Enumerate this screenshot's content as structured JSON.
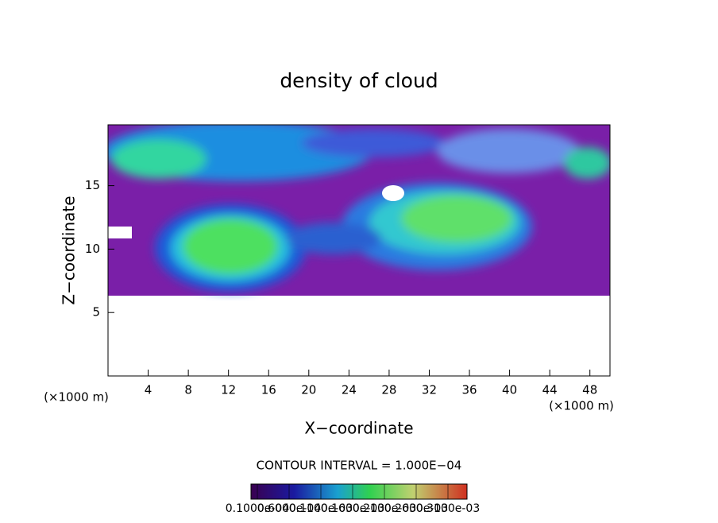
{
  "chart_data": {
    "type": "heatmap",
    "title": "density of cloud",
    "xlabel": "X−coordinate",
    "ylabel": "Z−coordinate",
    "x_unit_label": "(×1000 m)",
    "y_unit_label": "(×1000 m)",
    "xlim": [
      0,
      50
    ],
    "ylim": [
      0,
      19.8
    ],
    "xticks": [
      4,
      8,
      12,
      16,
      20,
      24,
      28,
      32,
      36,
      40,
      44,
      48
    ],
    "yticks": [
      5,
      10,
      15
    ],
    "contour_interval": "CONTOUR INTERVAL = 1.000E−04",
    "colorbar": {
      "lim": [
        0,
        0.00034
      ],
      "ticks": [
        {
          "value": 1e-05,
          "label": "0.1000e-04"
        },
        {
          "value": 6e-05,
          "label": "0.6000e-04"
        },
        {
          "value": 0.00011,
          "label": "0.1100e-03"
        },
        {
          "value": 0.00016,
          "label": "0.1600e-03"
        },
        {
          "value": 0.00021,
          "label": "0.2100e-03"
        },
        {
          "value": 0.00026,
          "label": "0.2600e-03"
        },
        {
          "value": 0.00031,
          "label": "0.3100e-03"
        }
      ]
    }
  }
}
